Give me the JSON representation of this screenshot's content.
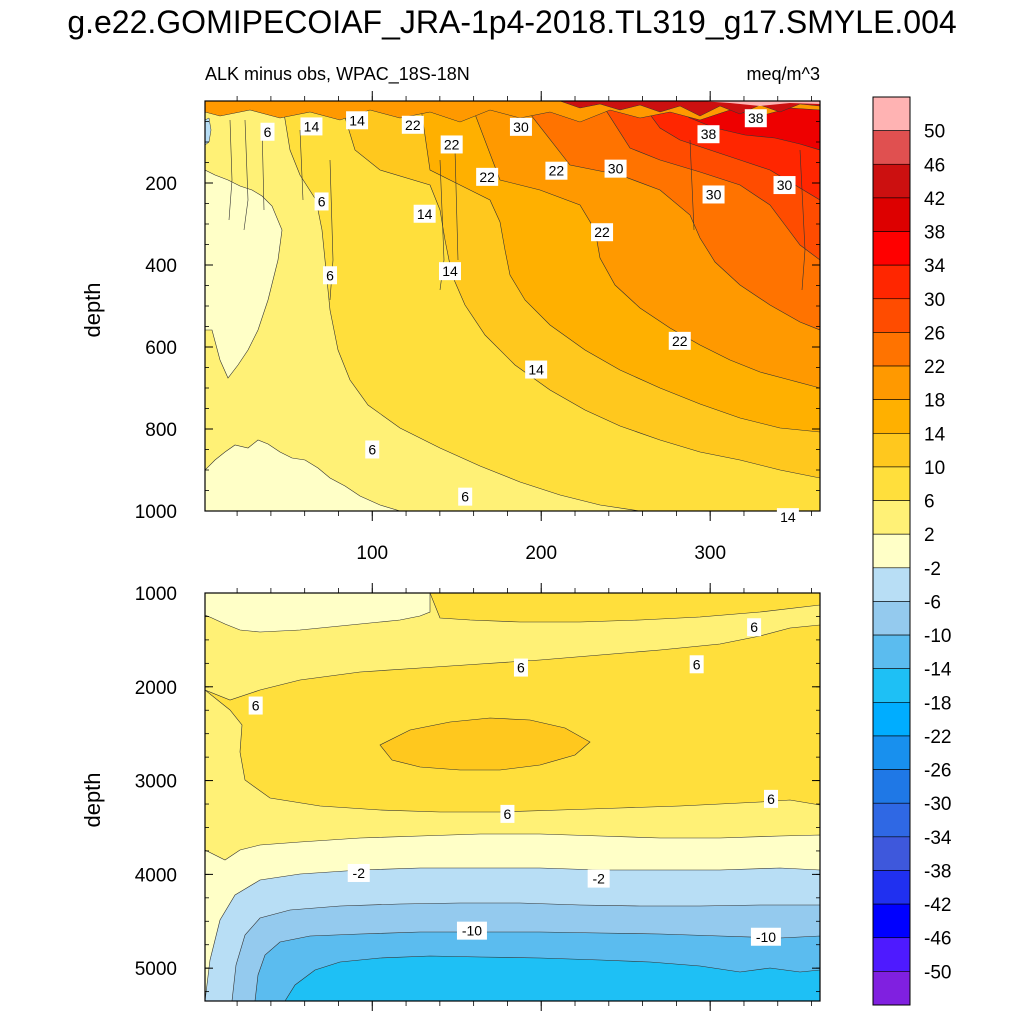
{
  "title": "g.e22.GOMIPECOIAF_JRA-1p4-2018.TL319_g17.SMYLE.004",
  "chart_data": [
    {
      "type": "contour",
      "panel": "upper",
      "subtitle_left": "ALK minus obs, WPAC_18S-18N",
      "subtitle_right": "meq/m^3",
      "xlabel": "",
      "ylabel": "depth",
      "xlim": [
        1,
        365
      ],
      "ylim": [
        0,
        1000
      ],
      "y_inverted": true,
      "xticks": [
        100,
        200,
        300
      ],
      "yticks": [
        200,
        400,
        600,
        800,
        1000
      ],
      "contour_labels": [
        {
          "text": "6",
          "x": 38,
          "y": 75
        },
        {
          "text": "14",
          "x": 64,
          "y": 62
        },
        {
          "text": "14",
          "x": 91,
          "y": 47
        },
        {
          "text": "22",
          "x": 124,
          "y": 58
        },
        {
          "text": "22",
          "x": 147,
          "y": 106
        },
        {
          "text": "30",
          "x": 188,
          "y": 63
        },
        {
          "text": "38",
          "x": 299,
          "y": 81
        },
        {
          "text": "38",
          "x": 327,
          "y": 42
        },
        {
          "text": "22",
          "x": 168,
          "y": 185
        },
        {
          "text": "22",
          "x": 209,
          "y": 170
        },
        {
          "text": "30",
          "x": 244,
          "y": 165
        },
        {
          "text": "30",
          "x": 302,
          "y": 228
        },
        {
          "text": "30",
          "x": 344,
          "y": 205
        },
        {
          "text": "6",
          "x": 70,
          "y": 245
        },
        {
          "text": "14",
          "x": 131,
          "y": 275
        },
        {
          "text": "22",
          "x": 236,
          "y": 320
        },
        {
          "text": "6",
          "x": 75,
          "y": 425
        },
        {
          "text": "14",
          "x": 146,
          "y": 415
        },
        {
          "text": "22",
          "x": 282,
          "y": 585
        },
        {
          "text": "14",
          "x": 197,
          "y": 655
        },
        {
          "text": "6",
          "x": 100,
          "y": 850
        },
        {
          "text": "6",
          "x": 155,
          "y": 965
        },
        {
          "text": "14",
          "x": 346,
          "y": 1015
        }
      ]
    },
    {
      "type": "contour",
      "panel": "lower",
      "xlabel": "",
      "ylabel": "depth",
      "xlim": [
        1,
        365
      ],
      "ylim": [
        1000,
        5350
      ],
      "y_inverted": true,
      "xticks": [
        100,
        200,
        300
      ],
      "yticks": [
        1000,
        2000,
        3000,
        4000,
        5000
      ],
      "contour_labels": [
        {
          "text": "6",
          "x": 326,
          "y": 1365
        },
        {
          "text": "6",
          "x": 188,
          "y": 1795
        },
        {
          "text": "6",
          "x": 292,
          "y": 1760
        },
        {
          "text": "6",
          "x": 31,
          "y": 2200
        },
        {
          "text": "6",
          "x": 180,
          "y": 3355
        },
        {
          "text": "6",
          "x": 336,
          "y": 3195
        },
        {
          "text": "-2",
          "x": 92,
          "y": 3985
        },
        {
          "text": "-2",
          "x": 234,
          "y": 4045
        },
        {
          "text": "-10",
          "x": 159,
          "y": 4600
        },
        {
          "text": "-10",
          "x": 333,
          "y": 4665
        }
      ]
    }
  ],
  "colorbar": {
    "levels": [
      "50",
      "46",
      "42",
      "38",
      "34",
      "30",
      "26",
      "22",
      "18",
      "14",
      "10",
      "6",
      "2",
      "-2",
      "-6",
      "-10",
      "-14",
      "-18",
      "-22",
      "-26",
      "-30",
      "-34",
      "-38",
      "-42",
      "-46",
      "-50"
    ],
    "colors": [
      "#ffb3b3",
      "#e05050",
      "#cc1010",
      "#dd0000",
      "#ff0000",
      "#ff2600",
      "#ff4c00",
      "#ff7300",
      "#ff9900",
      "#ffb000",
      "#ffc81e",
      "#ffdf3c",
      "#fff176",
      "#ffffc7",
      "#b8def5",
      "#94caee",
      "#5bbcef",
      "#1ec0f5",
      "#00adff",
      "#1890ee",
      "#1f78e6",
      "#2f68e4",
      "#3e58dc",
      "#2030f0",
      "#0000ff",
      "#4e1aff",
      "#8020e0"
    ]
  }
}
